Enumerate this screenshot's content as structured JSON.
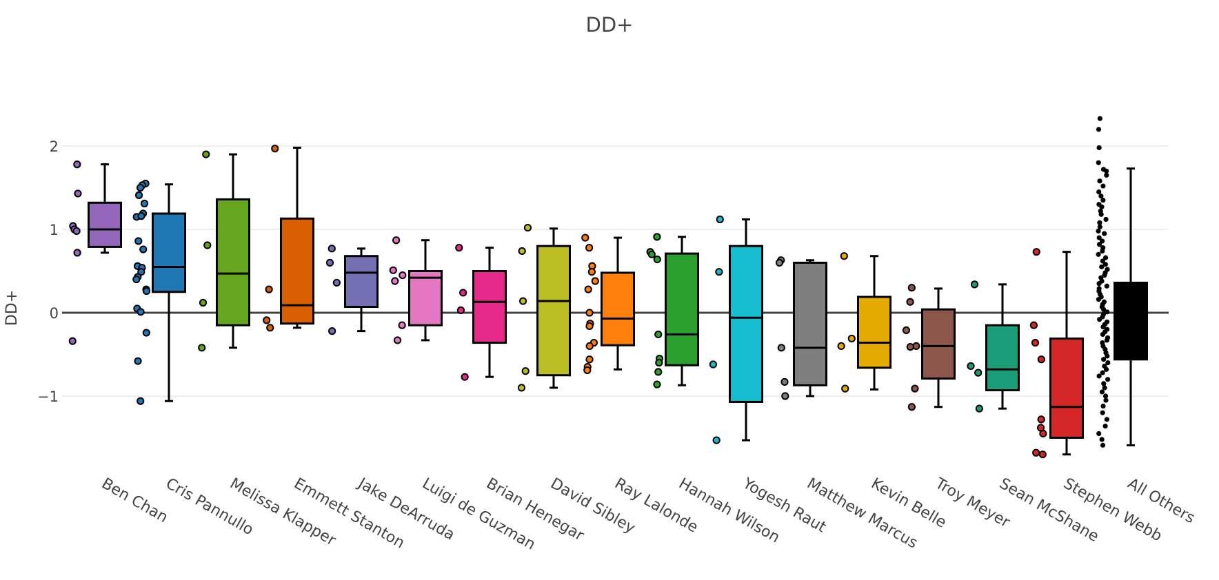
{
  "chart_data": {
    "type": "box",
    "title": "DD+",
    "xlabel": "",
    "ylabel": "DD+",
    "ylim": [
      -1.8,
      2.45
    ],
    "yticks": [
      -1,
      0,
      1,
      2
    ],
    "ytick_labels": [
      "−1",
      "0",
      "1",
      "2"
    ],
    "grid": true,
    "legend": "none",
    "series": [
      {
        "name": "Ben Chan",
        "color": "#9467bd",
        "q1": 0.79,
        "median": 1.0,
        "q3": 1.32,
        "lower": 0.72,
        "upper": 1.78,
        "points": [
          1.78,
          1.43,
          1.04,
          1.0,
          0.98,
          0.72,
          -0.34
        ]
      },
      {
        "name": "Cris Pannullo",
        "color": "#1f77b4",
        "q1": 0.25,
        "median": 0.55,
        "q3": 1.19,
        "lower": -1.06,
        "upper": 1.54,
        "points": [
          1.55,
          1.53,
          1.5,
          1.41,
          1.31,
          1.19,
          1.15,
          1.16,
          0.86,
          0.76,
          0.56,
          0.54,
          0.49,
          0.43,
          0.4,
          0.28,
          0.26,
          0.05,
          0.01,
          -0.24,
          -0.58,
          -1.06
        ]
      },
      {
        "name": "Melissa Klapper",
        "color": "#66a61e",
        "q1": -0.15,
        "median": 0.47,
        "q3": 1.36,
        "lower": -0.42,
        "upper": 1.9,
        "points": [
          1.9,
          0.81,
          0.12,
          -0.42
        ]
      },
      {
        "name": "Emmett Stanton",
        "color": "#d95f02",
        "q1": -0.13,
        "median": 0.09,
        "q3": 1.13,
        "lower": -0.18,
        "upper": 1.98,
        "points": [
          1.97,
          0.28,
          -0.09,
          -0.18
        ]
      },
      {
        "name": "Jake DeArruda",
        "color": "#7570b3",
        "q1": 0.07,
        "median": 0.48,
        "q3": 0.68,
        "lower": -0.22,
        "upper": 0.77,
        "points": [
          0.77,
          0.6,
          0.36,
          -0.22
        ]
      },
      {
        "name": "Luigi de Guzman",
        "color": "#e377c2",
        "q1": -0.15,
        "median": 0.42,
        "q3": 0.5,
        "lower": -0.33,
        "upper": 0.87,
        "points": [
          0.87,
          0.51,
          0.45,
          0.38,
          -0.15,
          -0.33
        ]
      },
      {
        "name": "Brian Henegar",
        "color": "#e7298a",
        "q1": -0.36,
        "median": 0.13,
        "q3": 0.5,
        "lower": -0.77,
        "upper": 0.78,
        "points": [
          0.78,
          0.24,
          0.03,
          -0.77
        ]
      },
      {
        "name": "David Sibley",
        "color": "#bcbd22",
        "q1": -0.75,
        "median": 0.14,
        "q3": 0.8,
        "lower": -0.9,
        "upper": 1.01,
        "points": [
          1.02,
          0.74,
          0.14,
          -0.7,
          -0.9
        ]
      },
      {
        "name": "Ray Lalonde",
        "color": "#ff7f0e",
        "q1": -0.39,
        "median": -0.07,
        "q3": 0.48,
        "lower": -0.68,
        "upper": 0.9,
        "points": [
          0.9,
          0.78,
          0.56,
          0.49,
          0.38,
          0.28,
          0.0,
          -0.13,
          -0.16,
          -0.36,
          -0.4,
          -0.56,
          -0.65,
          -0.69
        ]
      },
      {
        "name": "Hannah Wilson",
        "color": "#2ca02c",
        "q1": -0.63,
        "median": -0.26,
        "q3": 0.71,
        "lower": -0.87,
        "upper": 0.91,
        "points": [
          0.91,
          0.73,
          0.7,
          0.64,
          -0.26,
          -0.55,
          -0.6,
          -0.71,
          -0.86
        ]
      },
      {
        "name": "Yogesh Raut",
        "color": "#17becf",
        "q1": -1.07,
        "median": -0.06,
        "q3": 0.8,
        "lower": -1.53,
        "upper": 1.12,
        "points": [
          1.12,
          0.49,
          -0.62,
          -1.53
        ]
      },
      {
        "name": "Matthew Marcus",
        "color": "#7f7f7f",
        "q1": -0.87,
        "median": -0.42,
        "q3": 0.6,
        "lower": -1.0,
        "upper": 0.63,
        "points": [
          0.63,
          0.6,
          -0.42,
          -0.83,
          -1.0
        ]
      },
      {
        "name": "Kevin Belle",
        "color": "#e6ab02",
        "q1": -0.66,
        "median": -0.36,
        "q3": 0.19,
        "lower": -0.92,
        "upper": 0.68,
        "points": [
          0.68,
          -0.31,
          -0.4,
          -0.91
        ]
      },
      {
        "name": "Troy Meyer",
        "color": "#8c564b",
        "q1": -0.79,
        "median": -0.4,
        "q3": 0.04,
        "lower": -1.13,
        "upper": 0.29,
        "points": [
          0.3,
          0.13,
          -0.21,
          -0.4,
          -0.41,
          -0.91,
          -1.13
        ]
      },
      {
        "name": "Sean McShane",
        "color": "#1b9e77",
        "q1": -0.93,
        "median": -0.68,
        "q3": -0.15,
        "lower": -1.15,
        "upper": 0.34,
        "points": [
          0.34,
          -0.64,
          -0.72,
          -1.15
        ]
      },
      {
        "name": "Stephen Webb",
        "color": "#d62728",
        "q1": -1.5,
        "median": -1.13,
        "q3": -0.31,
        "lower": -1.7,
        "upper": 0.73,
        "points": [
          0.73,
          -0.15,
          -0.36,
          -0.56,
          -1.28,
          -1.38,
          -1.45,
          -1.68,
          -1.7
        ]
      },
      {
        "name": "All Others",
        "color": "#000000",
        "q1": -0.56,
        "median": -0.05,
        "q3": 0.36,
        "lower": -1.59,
        "upper": 1.73,
        "points": [
          2.33,
          2.2,
          1.98,
          1.8,
          1.72,
          1.7,
          1.65,
          1.58,
          1.52,
          1.45,
          1.4,
          1.35,
          1.3,
          1.27,
          1.22,
          1.18,
          1.12,
          1.08,
          1.03,
          0.98,
          0.95,
          0.9,
          0.86,
          0.82,
          0.78,
          0.74,
          0.7,
          0.66,
          0.62,
          0.58,
          0.55,
          0.52,
          0.48,
          0.45,
          0.42,
          0.38,
          0.35,
          0.32,
          0.29,
          0.26,
          0.22,
          0.19,
          0.16,
          0.13,
          0.1,
          0.07,
          0.04,
          0.01,
          -0.02,
          -0.05,
          -0.08,
          -0.11,
          -0.14,
          -0.17,
          -0.2,
          -0.23,
          -0.26,
          -0.3,
          -0.33,
          -0.36,
          -0.4,
          -0.44,
          -0.48,
          -0.52,
          -0.56,
          -0.6,
          -0.64,
          -0.68,
          -0.72,
          -0.76,
          -0.8,
          -0.85,
          -0.9,
          -0.95,
          -1.0,
          -1.05,
          -1.12,
          -1.2,
          -1.28,
          -1.36,
          -1.45,
          -1.52,
          -1.59
        ]
      }
    ]
  }
}
